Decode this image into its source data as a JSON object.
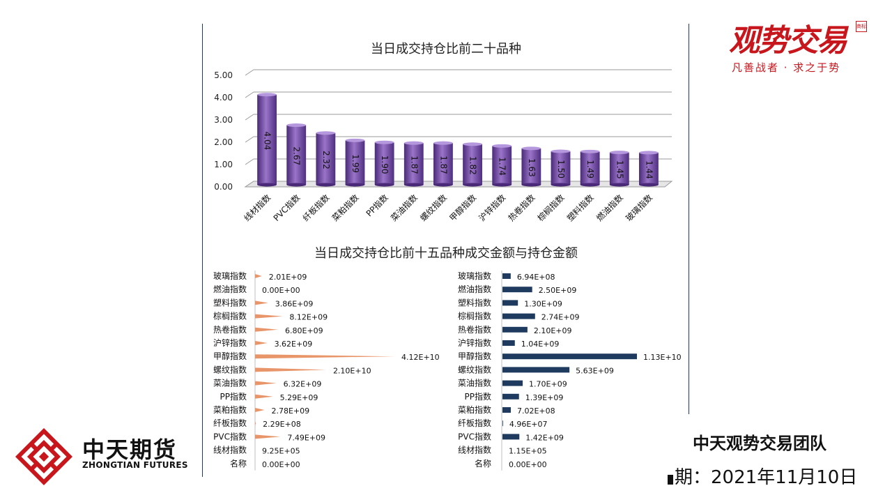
{
  "chart_data": [
    {
      "type": "bar",
      "title": "当日成交持仓比前二十品种",
      "categories": [
        "线材指数",
        "PVC指数",
        "纤板指数",
        "菜粕指数",
        "PP指数",
        "菜油指数",
        "螺纹指数",
        "甲醇指数",
        "沪锌指数",
        "热卷指数",
        "棕榈指数",
        "塑料指数",
        "燃油指数",
        "玻璃指数"
      ],
      "values": [
        4.04,
        2.67,
        2.32,
        1.99,
        1.9,
        1.87,
        1.87,
        1.82,
        1.74,
        1.63,
        1.5,
        1.49,
        1.45,
        1.44
      ],
      "value_labels": [
        "4.04",
        "2.67",
        "2.32",
        "1.99",
        "1.90",
        "1.87",
        "1.87",
        "1.82",
        "1.74",
        "1.63",
        "1.50",
        "1.49",
        "1.45",
        "1.44"
      ],
      "yticks": [
        "0.00",
        "1.00",
        "2.00",
        "3.00",
        "4.00",
        "5.00"
      ],
      "ylim": [
        0,
        5
      ],
      "grid": true,
      "color": "#7a4fa8"
    },
    {
      "type": "bar",
      "orientation": "horizontal",
      "title": "当日成交持仓比前十五品种成交金额与持仓金额",
      "categories": [
        "玻璃指数",
        "燃油指数",
        "塑料指数",
        "棕榈指数",
        "热卷指数",
        "沪锌指数",
        "甲醇指数",
        "螺纹指数",
        "菜油指数",
        "PP指数",
        "菜粕指数",
        "纤板指数",
        "PVC指数",
        "线材指数",
        "名称"
      ],
      "series": [
        {
          "values": [
            2010000000.0,
            0,
            3860000000.0,
            8120000000.0,
            6800000000.0,
            3620000000.0,
            41200000000.0,
            21000000000.0,
            6320000000.0,
            5290000000.0,
            2780000000.0,
            229000000.0,
            7490000000.0,
            925000.0,
            0
          ],
          "labels": [
            "2.01E+09",
            "0.00E+00",
            "3.86E+09",
            "8.12E+09",
            "6.80E+09",
            "3.62E+09",
            "4.12E+10",
            "2.10E+10",
            "6.32E+09",
            "5.29E+09",
            "2.78E+09",
            "2.29E+08",
            "7.49E+09",
            "9.25E+05",
            "0.00E+00"
          ],
          "color": "#e8956a"
        },
        {
          "values": [
            694000000.0,
            2500000000.0,
            1300000000.0,
            2740000000.0,
            2100000000.0,
            1040000000.0,
            11300000000.0,
            5630000000.0,
            1700000000.0,
            1390000000.0,
            702000000.0,
            49600000.0,
            1420000000.0,
            115000.0,
            0
          ],
          "labels": [
            "6.94E+08",
            "2.50E+09",
            "1.30E+09",
            "2.74E+09",
            "2.10E+09",
            "1.04E+09",
            "1.13E+10",
            "5.63E+09",
            "1.70E+09",
            "1.39E+09",
            "7.02E+08",
            "4.96E+07",
            "1.42E+09",
            "1.15E+05",
            "0.00E+00"
          ],
          "color": "#1f3a5f"
        }
      ]
    }
  ],
  "brand": {
    "name": "观势交易",
    "seal": "商标",
    "slogan": "凡善战者 · 求之于势"
  },
  "logo": {
    "cn": "中天期货",
    "en": "ZHONGTIAN FUTURES"
  },
  "team": "中天观势交易团队",
  "date": "期：2021年11月10日"
}
